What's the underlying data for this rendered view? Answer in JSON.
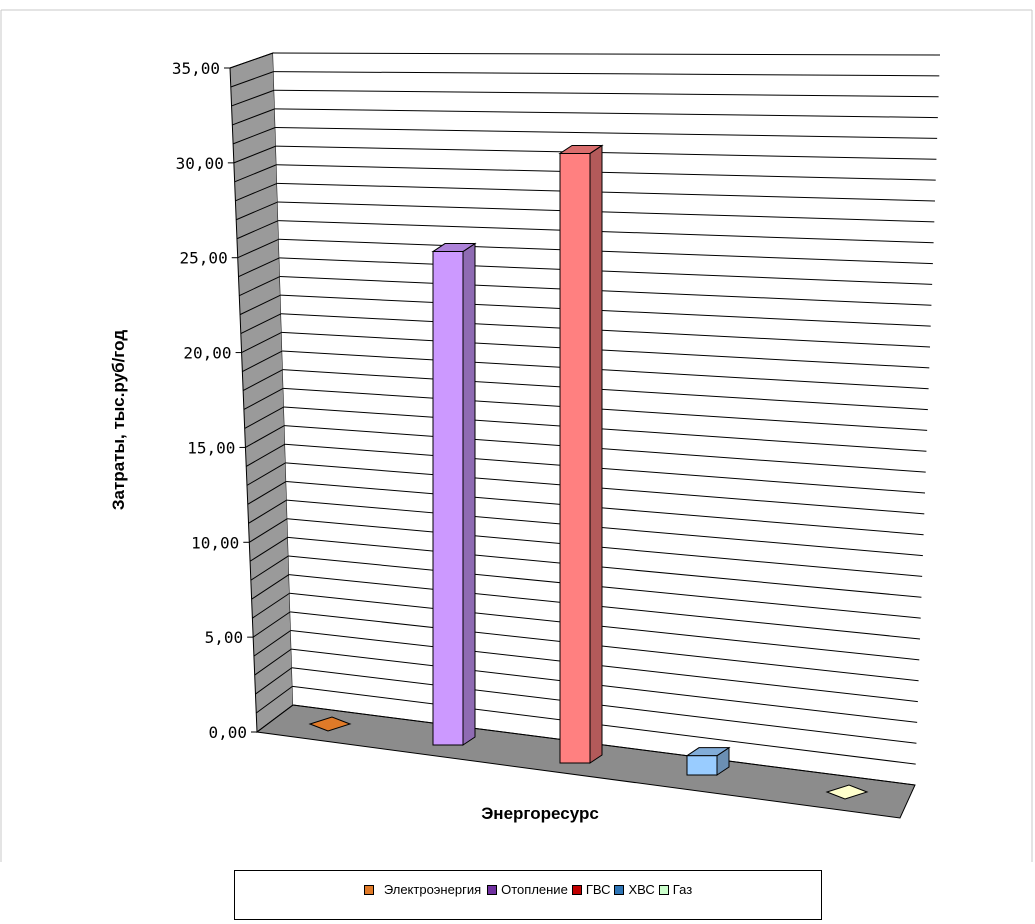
{
  "chart_data": {
    "type": "bar",
    "ylabel": "Затраты, тыс.руб/год",
    "xlabel": "Энергоресурс",
    "ylim": [
      0,
      35
    ],
    "yticks": [
      "0,00",
      "5,00",
      "10,00",
      "15,00",
      "20,00",
      "25,00",
      "30,00",
      "35,00"
    ],
    "grid": true,
    "legend_position": "bottom",
    "categories": [
      "Электроэнергия",
      "Отопление",
      "ГВС",
      "ХВС",
      "Газ"
    ],
    "values": [
      0,
      25.5,
      31.5,
      1.0,
      0
    ],
    "colors": [
      "#E07A28",
      "#CC99FF",
      "#FF8080",
      "#99CCFF",
      "#FFFFCC"
    ],
    "legend_colors": [
      "#E07A28",
      "#7030A0",
      "#C00000",
      "#2E75B6",
      "#CCFFCC"
    ]
  }
}
